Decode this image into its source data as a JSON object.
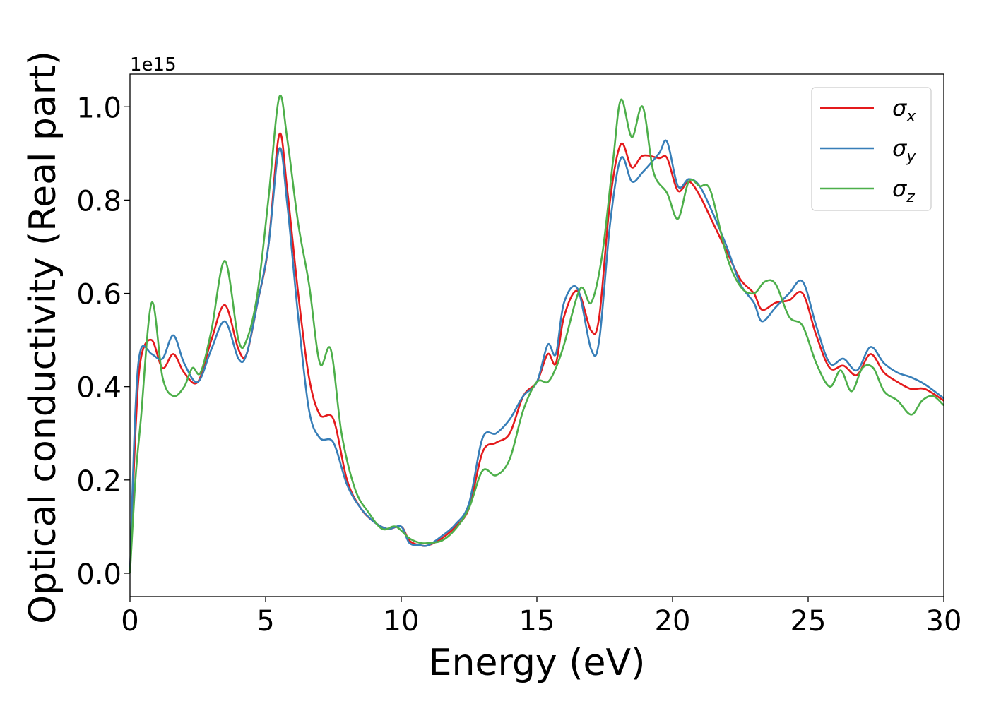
{
  "chart_data": {
    "type": "line",
    "xlabel": "Energy (eV)",
    "ylabel": "Optical conductivity (Real part)",
    "y_offset_text": "1e15",
    "xlim": [
      0,
      30
    ],
    "ylim": [
      -0.05,
      1.07
    ],
    "x_ticks": [
      0,
      5,
      10,
      15,
      20,
      25,
      30
    ],
    "x_tick_labels": [
      "0",
      "5",
      "10",
      "15",
      "20",
      "25",
      "30"
    ],
    "y_ticks": [
      0.0,
      0.2,
      0.4,
      0.6,
      0.8,
      1.0
    ],
    "y_tick_labels": [
      "0.0",
      "0.2",
      "0.4",
      "0.6",
      "0.8",
      "1.0"
    ],
    "grid": false,
    "legend_position": "top-right",
    "series": [
      {
        "name": "σx",
        "symbol": "σ",
        "subscript": "x",
        "color": "#e41a1c",
        "points": [
          [
            0,
            0
          ],
          [
            0.2,
            0.3
          ],
          [
            0.4,
            0.46
          ],
          [
            0.8,
            0.5
          ],
          [
            1.2,
            0.44
          ],
          [
            1.6,
            0.47
          ],
          [
            2.0,
            0.43
          ],
          [
            2.5,
            0.41
          ],
          [
            3.0,
            0.5
          ],
          [
            3.5,
            0.575
          ],
          [
            4.0,
            0.48
          ],
          [
            4.3,
            0.47
          ],
          [
            4.7,
            0.58
          ],
          [
            5.1,
            0.7
          ],
          [
            5.5,
            0.94
          ],
          [
            5.8,
            0.82
          ],
          [
            6.2,
            0.6
          ],
          [
            6.6,
            0.42
          ],
          [
            7.0,
            0.34
          ],
          [
            7.5,
            0.33
          ],
          [
            8.0,
            0.2
          ],
          [
            8.5,
            0.14
          ],
          [
            9.0,
            0.11
          ],
          [
            9.5,
            0.095
          ],
          [
            10.0,
            0.1
          ],
          [
            10.3,
            0.07
          ],
          [
            10.7,
            0.06
          ],
          [
            11.0,
            0.06
          ],
          [
            11.5,
            0.075
          ],
          [
            12.0,
            0.1
          ],
          [
            12.5,
            0.14
          ],
          [
            13.0,
            0.26
          ],
          [
            13.5,
            0.28
          ],
          [
            14.0,
            0.3
          ],
          [
            14.5,
            0.38
          ],
          [
            15.0,
            0.41
          ],
          [
            15.4,
            0.47
          ],
          [
            15.7,
            0.45
          ],
          [
            16.0,
            0.55
          ],
          [
            16.5,
            0.605
          ],
          [
            17.0,
            0.52
          ],
          [
            17.3,
            0.55
          ],
          [
            17.7,
            0.8
          ],
          [
            18.1,
            0.92
          ],
          [
            18.5,
            0.87
          ],
          [
            18.9,
            0.895
          ],
          [
            19.5,
            0.89
          ],
          [
            19.8,
            0.89
          ],
          [
            20.2,
            0.82
          ],
          [
            20.6,
            0.84
          ],
          [
            21.0,
            0.81
          ],
          [
            21.5,
            0.75
          ],
          [
            22.0,
            0.69
          ],
          [
            22.5,
            0.63
          ],
          [
            23.0,
            0.6
          ],
          [
            23.3,
            0.565
          ],
          [
            23.8,
            0.58
          ],
          [
            24.3,
            0.585
          ],
          [
            24.8,
            0.6
          ],
          [
            25.3,
            0.51
          ],
          [
            25.8,
            0.44
          ],
          [
            26.3,
            0.445
          ],
          [
            26.8,
            0.425
          ],
          [
            27.3,
            0.47
          ],
          [
            27.8,
            0.43
          ],
          [
            28.3,
            0.41
          ],
          [
            28.8,
            0.395
          ],
          [
            29.3,
            0.395
          ],
          [
            30.0,
            0.37
          ]
        ]
      },
      {
        "name": "σy",
        "symbol": "σ",
        "subscript": "y",
        "color": "#377eb8",
        "points": [
          [
            0,
            0
          ],
          [
            0.2,
            0.35
          ],
          [
            0.4,
            0.48
          ],
          [
            0.8,
            0.47
          ],
          [
            1.2,
            0.46
          ],
          [
            1.6,
            0.51
          ],
          [
            2.0,
            0.45
          ],
          [
            2.5,
            0.41
          ],
          [
            3.0,
            0.48
          ],
          [
            3.5,
            0.54
          ],
          [
            4.0,
            0.46
          ],
          [
            4.3,
            0.47
          ],
          [
            4.7,
            0.58
          ],
          [
            5.1,
            0.7
          ],
          [
            5.5,
            0.91
          ],
          [
            5.8,
            0.79
          ],
          [
            6.2,
            0.55
          ],
          [
            6.6,
            0.35
          ],
          [
            7.0,
            0.29
          ],
          [
            7.5,
            0.28
          ],
          [
            8.0,
            0.19
          ],
          [
            8.5,
            0.14
          ],
          [
            9.0,
            0.11
          ],
          [
            9.5,
            0.095
          ],
          [
            10.0,
            0.1
          ],
          [
            10.3,
            0.065
          ],
          [
            10.7,
            0.06
          ],
          [
            11.0,
            0.06
          ],
          [
            11.5,
            0.08
          ],
          [
            12.0,
            0.105
          ],
          [
            12.5,
            0.15
          ],
          [
            13.0,
            0.29
          ],
          [
            13.5,
            0.3
          ],
          [
            14.0,
            0.33
          ],
          [
            14.5,
            0.38
          ],
          [
            15.0,
            0.41
          ],
          [
            15.4,
            0.49
          ],
          [
            15.7,
            0.47
          ],
          [
            16.0,
            0.58
          ],
          [
            16.5,
            0.61
          ],
          [
            17.0,
            0.48
          ],
          [
            17.3,
            0.5
          ],
          [
            17.7,
            0.75
          ],
          [
            18.1,
            0.89
          ],
          [
            18.5,
            0.84
          ],
          [
            18.9,
            0.86
          ],
          [
            19.5,
            0.9
          ],
          [
            19.8,
            0.925
          ],
          [
            20.2,
            0.83
          ],
          [
            20.6,
            0.845
          ],
          [
            21.0,
            0.83
          ],
          [
            21.5,
            0.77
          ],
          [
            22.0,
            0.7
          ],
          [
            22.5,
            0.62
          ],
          [
            23.0,
            0.58
          ],
          [
            23.3,
            0.54
          ],
          [
            23.8,
            0.57
          ],
          [
            24.3,
            0.6
          ],
          [
            24.8,
            0.625
          ],
          [
            25.3,
            0.53
          ],
          [
            25.8,
            0.45
          ],
          [
            26.3,
            0.46
          ],
          [
            26.8,
            0.435
          ],
          [
            27.3,
            0.485
          ],
          [
            27.8,
            0.45
          ],
          [
            28.3,
            0.43
          ],
          [
            28.8,
            0.42
          ],
          [
            29.3,
            0.405
          ],
          [
            30.0,
            0.375
          ]
        ]
      },
      {
        "name": "σz",
        "symbol": "σ",
        "subscript": "z",
        "color": "#4daf4a",
        "points": [
          [
            0,
            0
          ],
          [
            0.2,
            0.2
          ],
          [
            0.4,
            0.33
          ],
          [
            0.8,
            0.58
          ],
          [
            1.2,
            0.42
          ],
          [
            1.6,
            0.38
          ],
          [
            2.0,
            0.4
          ],
          [
            2.3,
            0.44
          ],
          [
            2.6,
            0.43
          ],
          [
            3.0,
            0.52
          ],
          [
            3.5,
            0.67
          ],
          [
            4.0,
            0.5
          ],
          [
            4.3,
            0.5
          ],
          [
            4.7,
            0.6
          ],
          [
            5.1,
            0.8
          ],
          [
            5.5,
            1.02
          ],
          [
            5.8,
            0.93
          ],
          [
            6.2,
            0.75
          ],
          [
            6.6,
            0.62
          ],
          [
            7.0,
            0.45
          ],
          [
            7.4,
            0.48
          ],
          [
            7.8,
            0.3
          ],
          [
            8.3,
            0.18
          ],
          [
            8.8,
            0.13
          ],
          [
            9.3,
            0.095
          ],
          [
            9.8,
            0.1
          ],
          [
            10.3,
            0.075
          ],
          [
            10.7,
            0.065
          ],
          [
            11.0,
            0.065
          ],
          [
            11.5,
            0.07
          ],
          [
            12.0,
            0.095
          ],
          [
            12.5,
            0.14
          ],
          [
            13.0,
            0.22
          ],
          [
            13.5,
            0.21
          ],
          [
            14.0,
            0.245
          ],
          [
            14.5,
            0.35
          ],
          [
            15.0,
            0.41
          ],
          [
            15.4,
            0.41
          ],
          [
            15.7,
            0.44
          ],
          [
            16.0,
            0.49
          ],
          [
            16.6,
            0.61
          ],
          [
            17.0,
            0.58
          ],
          [
            17.4,
            0.68
          ],
          [
            17.8,
            0.88
          ],
          [
            18.1,
            1.015
          ],
          [
            18.5,
            0.935
          ],
          [
            18.9,
            1.0
          ],
          [
            19.3,
            0.86
          ],
          [
            19.8,
            0.815
          ],
          [
            20.2,
            0.76
          ],
          [
            20.6,
            0.84
          ],
          [
            21.0,
            0.83
          ],
          [
            21.4,
            0.82
          ],
          [
            22.0,
            0.68
          ],
          [
            22.5,
            0.615
          ],
          [
            23.0,
            0.6
          ],
          [
            23.4,
            0.625
          ],
          [
            23.8,
            0.62
          ],
          [
            24.3,
            0.55
          ],
          [
            24.8,
            0.53
          ],
          [
            25.3,
            0.45
          ],
          [
            25.8,
            0.4
          ],
          [
            26.2,
            0.435
          ],
          [
            26.6,
            0.39
          ],
          [
            27.0,
            0.44
          ],
          [
            27.4,
            0.44
          ],
          [
            27.8,
            0.39
          ],
          [
            28.3,
            0.37
          ],
          [
            28.8,
            0.34
          ],
          [
            29.2,
            0.37
          ],
          [
            29.6,
            0.38
          ],
          [
            30.0,
            0.36
          ]
        ]
      }
    ]
  }
}
